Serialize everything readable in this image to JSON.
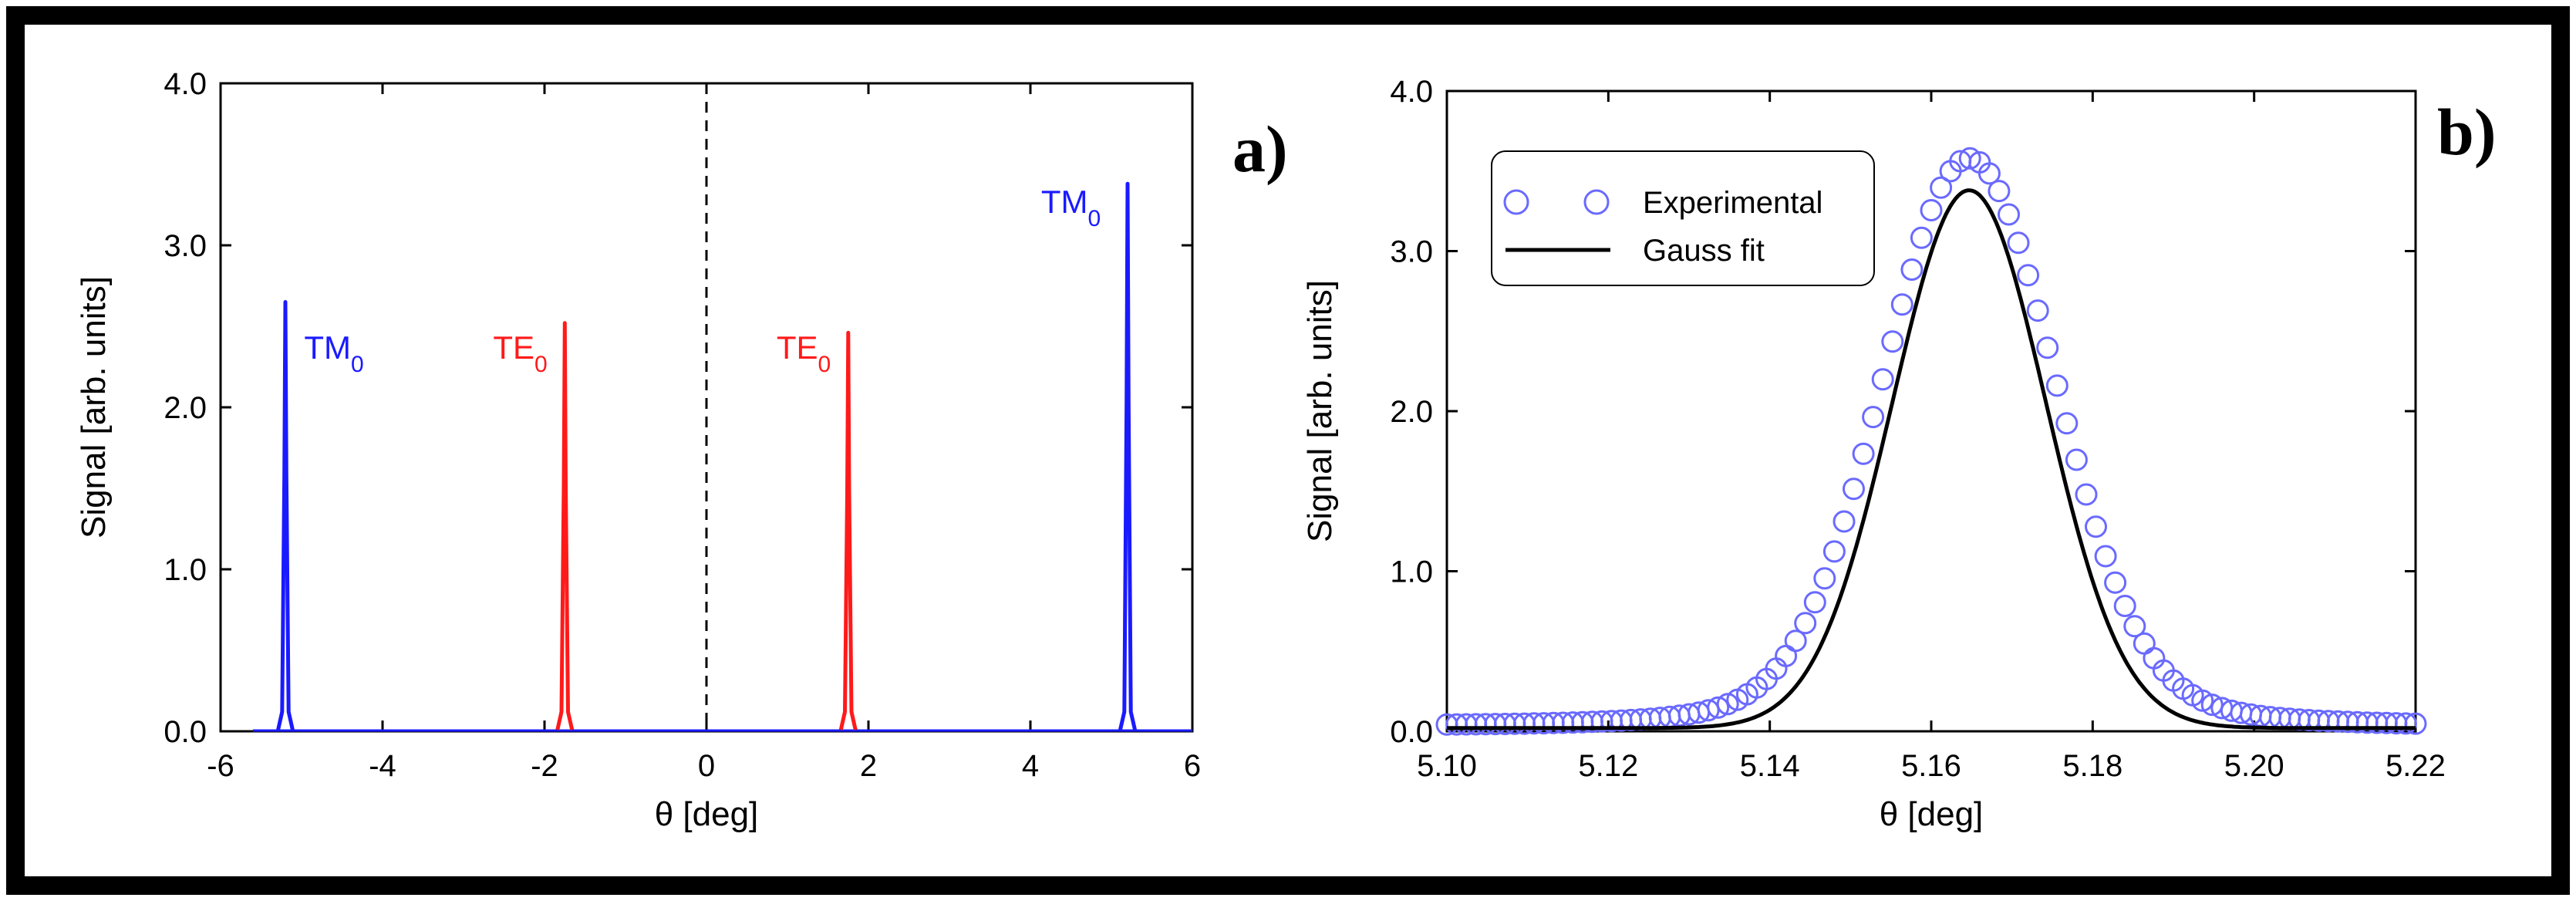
{
  "colors": {
    "blue": "#1a1aff",
    "red": "#ff1a1a",
    "black": "#000000",
    "circle": "#6a6aff"
  },
  "chart_data": [
    {
      "id": "a",
      "type": "line",
      "panel_label": "a)",
      "xlabel": "θ [deg]",
      "ylabel": "Signal [arb. units]",
      "xlim": [
        -6,
        6
      ],
      "ylim": [
        0,
        4
      ],
      "xticks": [
        -6,
        -4,
        -2,
        0,
        2,
        4,
        6
      ],
      "xtick_labels": [
        "-6",
        "-4",
        "-2",
        "0",
        "2",
        "4",
        "6"
      ],
      "yticks": [
        0,
        1,
        2,
        3,
        4
      ],
      "ytick_labels": [
        "0.0",
        "1.0",
        "2.0",
        "3.0",
        "4.0"
      ],
      "x_range_data": [
        -5.6,
        6
      ],
      "reference_line_x": 0,
      "series": [
        {
          "name": "TM0",
          "color": "#1a1aff",
          "peaks": [
            {
              "x": -5.2,
              "height": 2.65
            },
            {
              "x": 5.2,
              "height": 3.38
            }
          ]
        },
        {
          "name": "TE0",
          "color": "#ff1a1a",
          "peaks": [
            {
              "x": -1.75,
              "height": 2.52
            },
            {
              "x": 1.75,
              "height": 2.46
            }
          ]
        }
      ],
      "annotations": [
        {
          "base": "TM",
          "sub": "0",
          "x": -4.6,
          "y": 2.3,
          "color": "#1a1aff"
        },
        {
          "base": "TE",
          "sub": "0",
          "x": -2.3,
          "y": 2.3,
          "color": "#ff1a1a"
        },
        {
          "base": "TE",
          "sub": "0",
          "x": 1.2,
          "y": 2.3,
          "color": "#ff1a1a"
        },
        {
          "base": "TM",
          "sub": "0",
          "x": 4.5,
          "y": 3.2,
          "color": "#1a1aff"
        }
      ]
    },
    {
      "id": "b",
      "type": "scatter",
      "panel_label": "b)",
      "xlabel": "θ [deg]",
      "ylabel": "Signal [arb. units]",
      "xlim": [
        5.1,
        5.22
      ],
      "ylim": [
        0,
        4
      ],
      "xticks": [
        5.1,
        5.12,
        5.14,
        5.16,
        5.18,
        5.2,
        5.22
      ],
      "xtick_labels": [
        "5.10",
        "5.12",
        "5.14",
        "5.16",
        "5.18",
        "5.20",
        "5.22"
      ],
      "yticks": [
        0,
        1,
        2,
        3,
        4
      ],
      "ytick_labels": [
        "0.0",
        "1.0",
        "2.0",
        "3.0",
        "4.0"
      ],
      "legend": {
        "position": "top-left",
        "entries": [
          "Experimental",
          "Gauss fit"
        ]
      },
      "series": [
        {
          "name": "Experimental",
          "kind": "circles",
          "color": "#6a6aff",
          "x_start": 5.1,
          "x_end": 5.22,
          "step": 0.0012,
          "peak_x": 5.1647,
          "amplitude": 3.36,
          "sigma": 0.0105,
          "baseline": 0.04,
          "tail_amplitude": 0.18,
          "tail_sigma": 0.022
        },
        {
          "name": "Gauss fit",
          "kind": "line",
          "color": "#000000",
          "peak_x": 5.1647,
          "amplitude": 3.36,
          "sigma": 0.0095,
          "baseline": 0.02
        }
      ]
    }
  ]
}
